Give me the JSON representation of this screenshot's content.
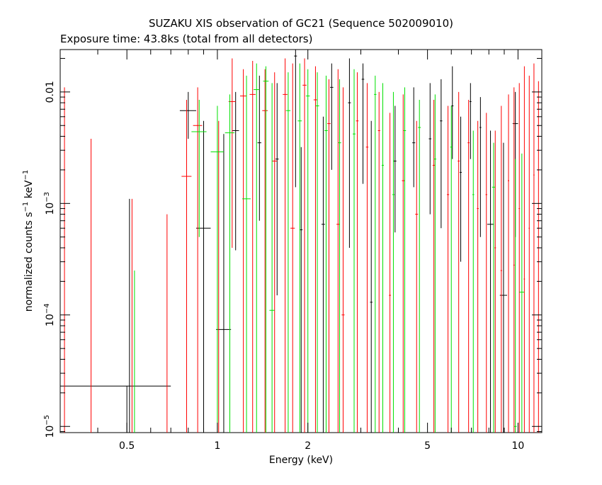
{
  "chart_data": {
    "type": "scatter",
    "title": "SUZAKU XIS observation of GC21 (Sequence 502009010)",
    "subtitle": "Exposure time: 43.8ks (total from all detectors)",
    "xlabel": "Energy (keV)",
    "ylabel_main": "normalized counts s",
    "ylabel_sup1": "−1",
    "ylabel_mid": " keV",
    "ylabel_sup2": "−1",
    "xscale": "log",
    "yscale": "log",
    "xlim": [
      0.3,
      12.0
    ],
    "ylim": [
      8.8e-06,
      0.024
    ],
    "grid": false,
    "x_ticks": [
      {
        "label": "0.5",
        "value": 0.5
      },
      {
        "label": "1",
        "value": 1
      },
      {
        "label": "2",
        "value": 2
      },
      {
        "label": "5",
        "value": 5
      },
      {
        "label": "10",
        "value": 10
      }
    ],
    "y_ticks": [
      {
        "base": "10",
        "exp": "−5",
        "value": 1e-05
      },
      {
        "base": "10",
        "exp": "−4",
        "value": 0.0001
      },
      {
        "base": "10",
        "exp": "−3",
        "value": 0.001
      },
      {
        "base": "0.01",
        "exp": "",
        "value": 0.01
      }
    ],
    "series": [
      {
        "color": "#000000",
        "points": [
          {
            "x": 0.5,
            "xlo": 0.3,
            "xhi": 0.7,
            "y": 2.3e-05,
            "ylo": 8.8e-06,
            "yhi": 2.3e-05
          },
          {
            "x": 0.51,
            "xlo": 0.51,
            "xhi": 0.51,
            "y": 3e-05,
            "ylo": 8.8e-06,
            "yhi": 0.0011
          },
          {
            "x": 0.8,
            "xlo": 0.75,
            "xhi": 0.85,
            "y": 0.0068,
            "ylo": 0.0038,
            "yhi": 0.01
          },
          {
            "x": 0.9,
            "xlo": 0.85,
            "xhi": 0.95,
            "y": 0.0006,
            "ylo": 8.8e-06,
            "yhi": 0.0055
          },
          {
            "x": 1.05,
            "xlo": 0.99,
            "xhi": 1.11,
            "y": 7.4e-05,
            "ylo": 8.8e-06,
            "yhi": 0.0042
          },
          {
            "x": 1.15,
            "xlo": 1.12,
            "xhi": 1.18,
            "y": 0.0045,
            "ylo": 0.00038,
            "yhi": 0.01
          },
          {
            "x": 1.38,
            "xlo": 1.36,
            "xhi": 1.4,
            "y": 0.0035,
            "ylo": 0.0007,
            "yhi": 0.014
          },
          {
            "x": 1.58,
            "xlo": 1.56,
            "xhi": 1.6,
            "y": 0.0025,
            "ylo": 0.00015,
            "yhi": 0.012
          },
          {
            "x": 1.82,
            "xlo": 1.8,
            "xhi": 1.84,
            "y": 0.021,
            "ylo": 0.0014,
            "yhi": 0.024
          },
          {
            "x": 1.9,
            "xlo": 1.88,
            "xhi": 1.92,
            "y": 0.00058,
            "ylo": 8.8e-06,
            "yhi": 0.0032
          },
          {
            "x": 2.25,
            "xlo": 2.22,
            "xhi": 2.28,
            "y": 0.00065,
            "ylo": 8.8e-06,
            "yhi": 0.006
          },
          {
            "x": 2.4,
            "xlo": 2.37,
            "xhi": 2.43,
            "y": 0.011,
            "ylo": 0.002,
            "yhi": 0.018
          },
          {
            "x": 2.75,
            "xlo": 2.72,
            "xhi": 2.78,
            "y": 0.008,
            "ylo": 0.0004,
            "yhi": 0.02
          },
          {
            "x": 3.05,
            "xlo": 3.02,
            "xhi": 3.08,
            "y": 0.013,
            "ylo": 0.0015,
            "yhi": 0.018
          },
          {
            "x": 3.25,
            "xlo": 3.22,
            "xhi": 3.28,
            "y": 0.00013,
            "ylo": 8.8e-06,
            "yhi": 0.0055
          },
          {
            "x": 3.9,
            "xlo": 3.86,
            "xhi": 3.94,
            "y": 0.0024,
            "ylo": 0.00055,
            "yhi": 0.0075
          },
          {
            "x": 4.5,
            "xlo": 4.45,
            "xhi": 4.55,
            "y": 0.0035,
            "ylo": 0.0014,
            "yhi": 0.011
          },
          {
            "x": 5.1,
            "xlo": 5.05,
            "xhi": 5.15,
            "y": 0.0038,
            "ylo": 0.0008,
            "yhi": 0.012
          },
          {
            "x": 5.55,
            "xlo": 5.5,
            "xhi": 5.6,
            "y": 0.0055,
            "ylo": 0.0006,
            "yhi": 0.013
          },
          {
            "x": 6.05,
            "xlo": 6.0,
            "xhi": 6.1,
            "y": 0.0075,
            "ylo": 0.0025,
            "yhi": 0.017
          },
          {
            "x": 6.45,
            "xlo": 6.4,
            "xhi": 6.5,
            "y": 0.0019,
            "ylo": 0.0003,
            "yhi": 0.006
          },
          {
            "x": 6.95,
            "xlo": 6.9,
            "xhi": 7.0,
            "y": 0.0082,
            "ylo": 0.0025,
            "yhi": 0.012
          },
          {
            "x": 7.5,
            "xlo": 7.45,
            "xhi": 7.55,
            "y": 0.0048,
            "ylo": 0.0005,
            "yhi": 0.009
          },
          {
            "x": 8.1,
            "xlo": 7.9,
            "xhi": 8.3,
            "y": 0.00065,
            "ylo": 8.8e-06,
            "yhi": 0.0045
          },
          {
            "x": 8.95,
            "xlo": 8.7,
            "xhi": 9.2,
            "y": 0.00015,
            "ylo": 8.8e-06,
            "yhi": 0.0035
          },
          {
            "x": 9.8,
            "xlo": 9.6,
            "xhi": 10.0,
            "y": 0.0052,
            "ylo": 0.0005,
            "yhi": 0.01
          }
        ]
      },
      {
        "color": "#ff0000",
        "points": [
          {
            "x": 0.31,
            "xlo": 0.31,
            "xhi": 0.31,
            "y": 2e-05,
            "ylo": 8.8e-06,
            "yhi": 0.011
          },
          {
            "x": 0.38,
            "xlo": 0.38,
            "xhi": 0.38,
            "y": 2e-05,
            "ylo": 8.8e-06,
            "yhi": 0.0038
          },
          {
            "x": 0.52,
            "xlo": 0.52,
            "xhi": 0.52,
            "y": 2e-05,
            "ylo": 8.8e-06,
            "yhi": 0.0011
          },
          {
            "x": 0.68,
            "xlo": 0.68,
            "xhi": 0.68,
            "y": 2e-05,
            "ylo": 8.8e-06,
            "yhi": 0.0008
          },
          {
            "x": 0.79,
            "xlo": 0.76,
            "xhi": 0.82,
            "y": 0.00175,
            "ylo": 8.8e-06,
            "yhi": 0.0085
          },
          {
            "x": 0.86,
            "xlo": 0.83,
            "xhi": 0.89,
            "y": 0.005,
            "ylo": 8.8e-06,
            "yhi": 0.011
          },
          {
            "x": 1.01,
            "xlo": 1.01,
            "xhi": 1.01,
            "y": 0.0002,
            "ylo": 8.8e-06,
            "yhi": 0.0055
          },
          {
            "x": 1.12,
            "xlo": 1.09,
            "xhi": 1.15,
            "y": 0.0082,
            "ylo": 0.0004,
            "yhi": 0.02
          },
          {
            "x": 1.22,
            "xlo": 1.19,
            "xhi": 1.25,
            "y": 0.0092,
            "ylo": 8.8e-06,
            "yhi": 0.016
          },
          {
            "x": 1.31,
            "xlo": 1.28,
            "xhi": 1.34,
            "y": 0.0095,
            "ylo": 8.8e-06,
            "yhi": 0.019
          },
          {
            "x": 1.44,
            "xlo": 1.41,
            "xhi": 1.47,
            "y": 0.0068,
            "ylo": 8.8e-06,
            "yhi": 0.016
          },
          {
            "x": 1.55,
            "xlo": 1.52,
            "xhi": 1.58,
            "y": 0.0024,
            "ylo": 8.8e-06,
            "yhi": 0.015
          },
          {
            "x": 1.68,
            "xlo": 1.65,
            "xhi": 1.71,
            "y": 0.0095,
            "ylo": 8.8e-06,
            "yhi": 0.02
          },
          {
            "x": 1.78,
            "xlo": 1.75,
            "xhi": 1.81,
            "y": 0.0006,
            "ylo": 8.8e-06,
            "yhi": 0.018
          },
          {
            "x": 1.95,
            "xlo": 1.92,
            "xhi": 1.98,
            "y": 0.0115,
            "ylo": 8.8e-06,
            "yhi": 0.02
          },
          {
            "x": 2.12,
            "xlo": 2.09,
            "xhi": 2.15,
            "y": 0.0085,
            "ylo": 8.8e-06,
            "yhi": 0.017
          },
          {
            "x": 2.35,
            "xlo": 2.32,
            "xhi": 2.38,
            "y": 0.0052,
            "ylo": 8.8e-06,
            "yhi": 0.013
          },
          {
            "x": 2.52,
            "xlo": 2.49,
            "xhi": 2.55,
            "y": 0.00065,
            "ylo": 8.8e-06,
            "yhi": 0.016
          },
          {
            "x": 2.62,
            "xlo": 2.59,
            "xhi": 2.65,
            "y": 0.0001,
            "ylo": 8.8e-06,
            "yhi": 0.011
          },
          {
            "x": 2.92,
            "xlo": 2.89,
            "xhi": 2.95,
            "y": 0.0055,
            "ylo": 8.8e-06,
            "yhi": 0.015
          },
          {
            "x": 3.15,
            "xlo": 3.12,
            "xhi": 3.18,
            "y": 0.0032,
            "ylo": 8.8e-06,
            "yhi": 0.012
          },
          {
            "x": 3.45,
            "xlo": 3.42,
            "xhi": 3.48,
            "y": 0.0045,
            "ylo": 8.8e-06,
            "yhi": 0.01
          },
          {
            "x": 3.75,
            "xlo": 3.72,
            "xhi": 3.78,
            "y": 0.00015,
            "ylo": 8.8e-06,
            "yhi": 0.0065
          },
          {
            "x": 4.15,
            "xlo": 4.11,
            "xhi": 4.19,
            "y": 0.0016,
            "ylo": 8.8e-06,
            "yhi": 0.0095
          },
          {
            "x": 4.6,
            "xlo": 4.55,
            "xhi": 4.65,
            "y": 0.0008,
            "ylo": 8.8e-06,
            "yhi": 0.0055
          },
          {
            "x": 5.25,
            "xlo": 5.2,
            "xhi": 5.3,
            "y": 0.0022,
            "ylo": 8.8e-06,
            "yhi": 0.0085
          },
          {
            "x": 5.85,
            "xlo": 5.8,
            "xhi": 5.9,
            "y": 0.0012,
            "ylo": 8.8e-06,
            "yhi": 0.0075
          },
          {
            "x": 6.35,
            "xlo": 6.3,
            "xhi": 6.4,
            "y": 0.0024,
            "ylo": 8.8e-06,
            "yhi": 0.01
          },
          {
            "x": 6.85,
            "xlo": 6.8,
            "xhi": 6.9,
            "y": 0.0035,
            "ylo": 8.8e-06,
            "yhi": 0.0085
          },
          {
            "x": 7.35,
            "xlo": 7.3,
            "xhi": 7.4,
            "y": 0.0009,
            "ylo": 8.8e-06,
            "yhi": 0.0055
          },
          {
            "x": 7.85,
            "xlo": 7.8,
            "xhi": 7.9,
            "y": 0.0012,
            "ylo": 8.8e-06,
            "yhi": 0.0065
          },
          {
            "x": 8.4,
            "xlo": 8.35,
            "xhi": 8.45,
            "y": 0.0004,
            "ylo": 8.8e-06,
            "yhi": 0.0045
          },
          {
            "x": 8.8,
            "xlo": 8.75,
            "xhi": 8.85,
            "y": 0.00025,
            "ylo": 8.8e-06,
            "yhi": 0.0075
          },
          {
            "x": 9.3,
            "xlo": 9.25,
            "xhi": 9.35,
            "y": 0.0016,
            "ylo": 8.8e-06,
            "yhi": 0.0095
          },
          {
            "x": 9.7,
            "xlo": 9.65,
            "xhi": 9.75,
            "y": 0.00028,
            "ylo": 8.8e-06,
            "yhi": 0.011
          },
          {
            "x": 10.1,
            "xlo": 10.05,
            "xhi": 10.15,
            "y": 0.0009,
            "ylo": 8.8e-06,
            "yhi": 0.012
          },
          {
            "x": 10.5,
            "xlo": 10.45,
            "xhi": 10.55,
            "y": 0.00021,
            "ylo": 8.8e-06,
            "yhi": 0.017
          },
          {
            "x": 10.9,
            "xlo": 10.85,
            "xhi": 10.95,
            "y": 0.0006,
            "ylo": 8.8e-06,
            "yhi": 0.014
          },
          {
            "x": 11.3,
            "xlo": 11.25,
            "xhi": 11.35,
            "y": 0.0018,
            "ylo": 8.8e-06,
            "yhi": 0.018
          },
          {
            "x": 11.7,
            "xlo": 11.65,
            "xhi": 11.75,
            "y": 0.0004,
            "ylo": 8.8e-06,
            "yhi": 0.0125
          }
        ]
      },
      {
        "color": "#00e000",
        "points": [
          {
            "x": 0.53,
            "xlo": 0.53,
            "xhi": 0.53,
            "y": 2e-05,
            "ylo": 8.8e-06,
            "yhi": 0.00025
          },
          {
            "x": 0.87,
            "xlo": 0.82,
            "xhi": 0.92,
            "y": 0.0044,
            "ylo": 0.0005,
            "yhi": 0.0085
          },
          {
            "x": 1.0,
            "xlo": 0.95,
            "xhi": 1.05,
            "y": 0.0029,
            "ylo": 8.8e-06,
            "yhi": 0.0075
          },
          {
            "x": 1.1,
            "xlo": 1.06,
            "xhi": 1.14,
            "y": 0.0043,
            "ylo": 8.8e-06,
            "yhi": 0.0095
          },
          {
            "x": 1.25,
            "xlo": 1.21,
            "xhi": 1.29,
            "y": 0.0011,
            "ylo": 8.8e-06,
            "yhi": 0.014
          },
          {
            "x": 1.35,
            "xlo": 1.32,
            "xhi": 1.38,
            "y": 0.0105,
            "ylo": 8.8e-06,
            "yhi": 0.018
          },
          {
            "x": 1.45,
            "xlo": 1.42,
            "xhi": 1.48,
            "y": 0.0125,
            "ylo": 8.8e-06,
            "yhi": 0.017
          },
          {
            "x": 1.52,
            "xlo": 1.49,
            "xhi": 1.55,
            "y": 0.00011,
            "ylo": 8.8e-06,
            "yhi": 0.012
          },
          {
            "x": 1.72,
            "xlo": 1.69,
            "xhi": 1.75,
            "y": 0.0068,
            "ylo": 8.8e-06,
            "yhi": 0.015
          },
          {
            "x": 1.88,
            "xlo": 1.85,
            "xhi": 1.91,
            "y": 0.0055,
            "ylo": 8.8e-06,
            "yhi": 0.018
          },
          {
            "x": 2.0,
            "xlo": 1.97,
            "xhi": 2.03,
            "y": 0.0092,
            "ylo": 8.8e-06,
            "yhi": 0.016
          },
          {
            "x": 2.15,
            "xlo": 2.12,
            "xhi": 2.18,
            "y": 0.0075,
            "ylo": 8.8e-06,
            "yhi": 0.015
          },
          {
            "x": 2.3,
            "xlo": 2.27,
            "xhi": 2.33,
            "y": 0.0045,
            "ylo": 8.8e-06,
            "yhi": 0.014
          },
          {
            "x": 2.55,
            "xlo": 2.52,
            "xhi": 2.58,
            "y": 0.0035,
            "ylo": 8.8e-06,
            "yhi": 0.013
          },
          {
            "x": 2.85,
            "xlo": 2.82,
            "xhi": 2.88,
            "y": 0.0042,
            "ylo": 8.8e-06,
            "yhi": 0.016
          },
          {
            "x": 3.35,
            "xlo": 3.32,
            "xhi": 3.38,
            "y": 0.0095,
            "ylo": 8.8e-06,
            "yhi": 0.014
          },
          {
            "x": 3.55,
            "xlo": 3.52,
            "xhi": 3.58,
            "y": 0.0022,
            "ylo": 8.8e-06,
            "yhi": 0.012
          },
          {
            "x": 3.85,
            "xlo": 3.82,
            "xhi": 3.88,
            "y": 0.0012,
            "ylo": 8.8e-06,
            "yhi": 0.01
          },
          {
            "x": 4.2,
            "xlo": 4.16,
            "xhi": 4.24,
            "y": 0.0045,
            "ylo": 8.8e-06,
            "yhi": 0.011
          },
          {
            "x": 4.7,
            "xlo": 4.65,
            "xhi": 4.75,
            "y": 0.0048,
            "ylo": 8.8e-06,
            "yhi": 0.0085
          },
          {
            "x": 5.3,
            "xlo": 5.25,
            "xhi": 5.35,
            "y": 0.0025,
            "ylo": 8.8e-06,
            "yhi": 0.0095
          },
          {
            "x": 6.0,
            "xlo": 5.95,
            "xhi": 6.05,
            "y": 0.0032,
            "ylo": 8.8e-06,
            "yhi": 0.0075
          },
          {
            "x": 7.1,
            "xlo": 7.05,
            "xhi": 7.15,
            "y": 0.0012,
            "ylo": 8.8e-06,
            "yhi": 0.0045
          },
          {
            "x": 8.3,
            "xlo": 8.2,
            "xhi": 8.4,
            "y": 0.0014,
            "ylo": 8.8e-06,
            "yhi": 0.0035
          },
          {
            "x": 9.8,
            "xlo": 9.7,
            "xhi": 9.9,
            "y": 1e-05,
            "ylo": 8.8e-06,
            "yhi": 0.0025
          },
          {
            "x": 10.3,
            "xlo": 10.1,
            "xhi": 10.5,
            "y": 0.00016,
            "ylo": 8.8e-06,
            "yhi": 0.0028
          }
        ]
      }
    ]
  }
}
